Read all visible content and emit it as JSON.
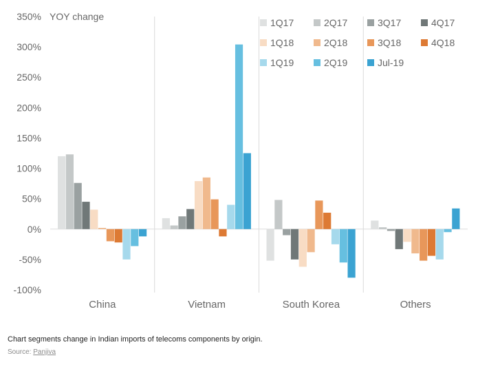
{
  "chart_data": {
    "type": "bar",
    "ylabel": "YOY change",
    "ylim": [
      -100,
      350
    ],
    "yticks": [
      "-100%",
      "-50%",
      "0%",
      "50%",
      "100%",
      "150%",
      "200%",
      "250%",
      "300%",
      "350%"
    ],
    "ytick_values": [
      -100,
      -50,
      0,
      50,
      100,
      150,
      200,
      250,
      300,
      350
    ],
    "categories": [
      "China",
      "Vietnam",
      "South Korea",
      "Others"
    ],
    "grid": false,
    "legend_position": "top-right",
    "series": [
      {
        "name": "1Q17",
        "color": "#dfe1e1",
        "values": [
          120,
          18,
          -52,
          14
        ]
      },
      {
        "name": "2Q17",
        "color": "#c4c8c8",
        "values": [
          123,
          6,
          48,
          3
        ]
      },
      {
        "name": "3Q17",
        "color": "#9aa1a1",
        "values": [
          76,
          21,
          -10,
          -3
        ]
      },
      {
        "name": "4Q17",
        "color": "#707878",
        "values": [
          45,
          33,
          -50,
          -33
        ]
      },
      {
        "name": "1Q18",
        "color": "#f8dcc4",
        "values": [
          32,
          79,
          -62,
          -21
        ]
      },
      {
        "name": "2Q18",
        "color": "#f0b98d",
        "values": [
          2,
          85,
          -38,
          -40
        ]
      },
      {
        "name": "3Q18",
        "color": "#e8975a",
        "values": [
          -20,
          49,
          47,
          -52
        ]
      },
      {
        "name": "4Q18",
        "color": "#dd7a34",
        "values": [
          -22,
          -12,
          27,
          -44
        ]
      },
      {
        "name": "1Q19",
        "color": "#a6d9ec",
        "values": [
          -50,
          40,
          -25,
          -50
        ]
      },
      {
        "name": "2Q19",
        "color": "#66bfe0",
        "values": [
          -28,
          304,
          -55,
          -5
        ]
      },
      {
        "name": "Jul-19",
        "color": "#3ba3d2",
        "values": [
          -12,
          125,
          -80,
          34
        ]
      }
    ]
  },
  "caption": "Chart segments change in Indian imports of telecoms components by origin.",
  "source_label": "Source:",
  "source_link": "Panjiva"
}
